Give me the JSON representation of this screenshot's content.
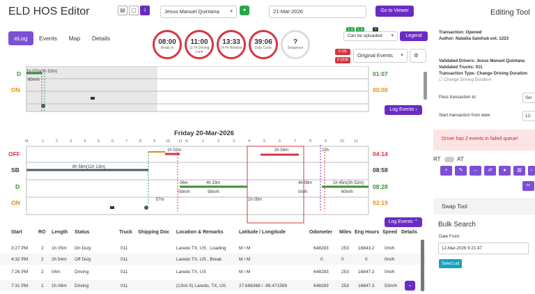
{
  "app": {
    "title": "ELD HOS Editor",
    "driver": "Jesus Manuel Quintana",
    "date": "21-Mar-2026",
    "goto": "Go to Viewer"
  },
  "tabs": [
    {
      "label": "eLog"
    },
    {
      "label": "Events"
    },
    {
      "label": "Map"
    },
    {
      "label": "Details"
    }
  ],
  "gauges": [
    {
      "value": "08:00",
      "label": "Break In"
    },
    {
      "value": "11:00",
      "label": "11 Hr Driving Limit"
    },
    {
      "value": "13:33",
      "label": "14 Hr Window"
    },
    {
      "value": "39:06",
      "label": "Duty Cycle"
    },
    {
      "value": "?",
      "label": "Sequence"
    }
  ],
  "status": {
    "chip1": "1.0",
    "chip2": "1.0",
    "chip3": "?",
    "uploaded": "Can be uploaded:",
    "legend": "Legend",
    "ue": "0 UE",
    "que": "2 QUE",
    "original_events": "Original Events"
  },
  "top_log": {
    "off": "",
    "sb": "",
    "d": "D",
    "on": "ON",
    "sb_total": "",
    "d_total": "01:07",
    "on_total": "00:00",
    "seg_text": "1h 07m(3h 52m)",
    "speed": "60m/h",
    "log_events": "Log Events"
  },
  "day": {
    "title": "Friday 20-Mar-2026",
    "off": "OFF",
    "sb": "SB",
    "d": "D",
    "on": "ON",
    "off_total": "04:14",
    "sb_total": "08:58",
    "d_total": "08:28",
    "on_total": "02:19",
    "segments": [
      "8h 58m(11h 13m)",
      "1h 02m",
      "2h 54m",
      "4h 23m",
      "1h 05m",
      "57m",
      "1h 08m",
      "15h",
      "1h 45m(3h 52m)",
      "0m",
      "4h 08m",
      "1h 45m(3h 52m)",
      "06m",
      "59m/h",
      "58m/h",
      "0m/h",
      "60m/h",
      "1h 05m",
      "57m"
    ],
    "ticks": [
      "M",
      "1",
      "2",
      "3",
      "4",
      "5",
      "6",
      "7",
      "8",
      "9",
      "10",
      "11",
      "N",
      "1",
      "2",
      "3",
      "4",
      "5",
      "6",
      "7",
      "8",
      "9",
      "10",
      "11"
    ],
    "log_events": "Log Events"
  },
  "table": {
    "headers": [
      "Start",
      "RO",
      "Length",
      "Status",
      "Truck",
      "Shipping Doc",
      "Location & Remarks",
      "Latitude / Longitude",
      "Odometer",
      "Miles",
      "Eng Hours",
      "Speed",
      "Details"
    ],
    "rows": [
      [
        "3:27 PM",
        "2",
        "1h 05m",
        "On Duty",
        "011",
        "",
        "Laredo TX, US , Loading",
        "M / M",
        "648283",
        "253",
        "16843.2",
        "0m/h"
      ],
      [
        "4:32 PM",
        "2",
        "2h 54m",
        "Off Duty",
        "011",
        "",
        "Laredo TX, US , Break",
        "M / M",
        "0",
        "0",
        "0",
        "0m/h"
      ],
      [
        "7:26 PM",
        "2",
        "04m",
        "Driving",
        "011",
        "",
        "Laredo TX, US",
        "M / M",
        "648283",
        "253",
        "16847.2",
        "0m/h"
      ],
      [
        "7:31 PM",
        "1",
        "1h 08m",
        "Driving",
        "011",
        "",
        "(13mi S) Laredo, TX, US",
        "27.696368 / -99.471559",
        "648283",
        "253",
        "16847.3",
        "53m/h"
      ]
    ]
  },
  "right": {
    "header": "Editing Tool",
    "transaction": "Transaction: Opened",
    "author": "Author: Nataliia Salohub ext. 1223",
    "validated_drivers": "Validated Drivers: Jesus Manuel Quintana",
    "validated_trucks": "Validated Trucks: 011",
    "transaction_type": "Transaction Type: Change Driving Duration",
    "checkbox": "Change Driving Duration",
    "pass": "Pass transaction to:",
    "pass_val": "Sel",
    "start": "Start transaction from date:",
    "start_val": "12-",
    "alert": "Driver has 2 events in failed queue!",
    "rt": "RT",
    "at": "AT",
    "swap": "Swap Tool",
    "bulk": "Bulk Search",
    "date_from": "Date From:",
    "date_val": "12-Mar-2026 9:21:47",
    "select_all": "Select all"
  },
  "colors": {
    "accent": "#6a2bc4",
    "off": "#d9343f",
    "sb": "#4a5a6a",
    "d": "#3c8f35",
    "on": "#e88a12"
  }
}
